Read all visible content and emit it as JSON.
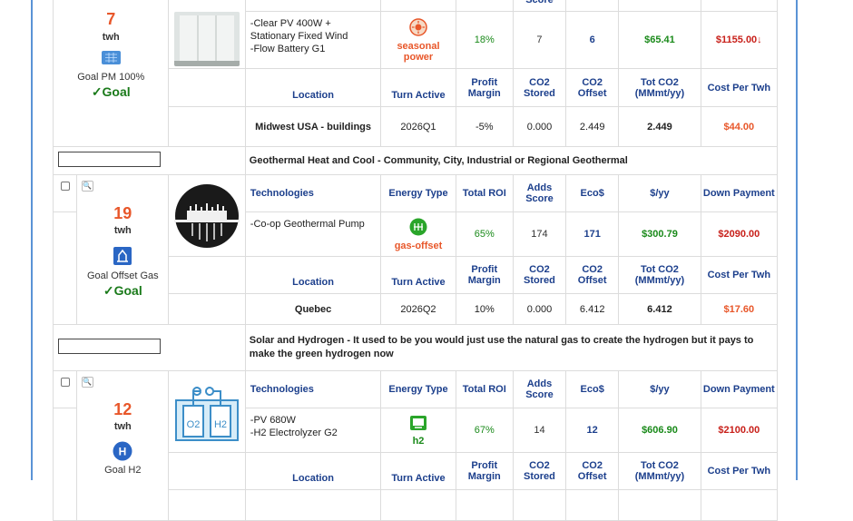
{
  "columns": {
    "technologies": "Technologies",
    "energy_type": "Energy Type",
    "total_roi": "Total ROI",
    "adds_score": "Adds Score",
    "ecos": "Eco$",
    "per_yr": "$/yy",
    "down_payment": "Down Payment",
    "location": "Location",
    "turn_active": "Turn Active",
    "profit_margin": "Profit Margin",
    "co2_stored": "CO2 Stored",
    "co2_offset": "CO2 Offset",
    "tot_co2": "Tot CO2 (MMmt/yy)",
    "cost_per_twh": "Cost Per Twh"
  },
  "projects": [
    {
      "twh": "7",
      "unit": "twh",
      "goal_label": "Goal PM 100%",
      "goal_status": "✓Goal",
      "technologies": [
        "-Clear PV 400W + Stationary Fixed Wind",
        "-Flow Battery G1"
      ],
      "energy_type": "seasonal power",
      "total_roi": "18%",
      "adds_score": "7",
      "ecos": "6",
      "per_yr": "$65.41",
      "down_payment": "$1155.00↓",
      "location": "Midwest USA - buildings",
      "turn_active": "2026Q1",
      "profit_margin": "-5%",
      "co2_stored": "0.000",
      "co2_offset": "2.449",
      "tot_co2": "2.449",
      "cost_per_twh": "$44.00"
    },
    {
      "category": "Geothermal Heat and Cool - Community, City, Industrial or Regional Geothermal",
      "twh": "19",
      "unit": "twh",
      "goal_label": "Goal Offset Gas",
      "goal_status": "✓Goal",
      "technologies": [
        "-Co-op Geothermal Pump"
      ],
      "energy_type": "gas-offset",
      "total_roi": "65%",
      "adds_score": "174",
      "ecos": "171",
      "per_yr": "$300.79",
      "down_payment": "$2090.00",
      "location": "Quebec",
      "turn_active": "2026Q2",
      "profit_margin": "10%",
      "co2_stored": "0.000",
      "co2_offset": "6.412",
      "tot_co2": "6.412",
      "cost_per_twh": "$17.60"
    },
    {
      "category": "Solar and Hydrogen - It used to be you would just use the natural gas to create the hydrogen but it pays to make the green hydrogen now",
      "twh": "12",
      "unit": "twh",
      "goal_label": "Goal H2",
      "technologies": [
        "-PV 680W",
        "-H2 Electrolyzer G2"
      ],
      "energy_type": "h2",
      "total_roi": "67%",
      "adds_score": "14",
      "ecos": "12",
      "per_yr": "$606.90",
      "down_payment": "$2100.00"
    }
  ],
  "icons": {
    "goal_icon_1": "solar-panel-icon",
    "energy_icon_1": "seasonal-power-icon",
    "goal_icon_2": "gas-offset-goal-icon",
    "energy_icon_2": "gas-offset-icon",
    "energy_icon_3": "h2-icon",
    "goal_icon_3": "h2-goal-icon",
    "search": "magnifier-icon"
  },
  "colors": {
    "frame": "#5b93d6",
    "positive": "#1a8a1a",
    "negative": "#c8201a",
    "accent": "#e8572a",
    "header": "#1c3f8c"
  }
}
